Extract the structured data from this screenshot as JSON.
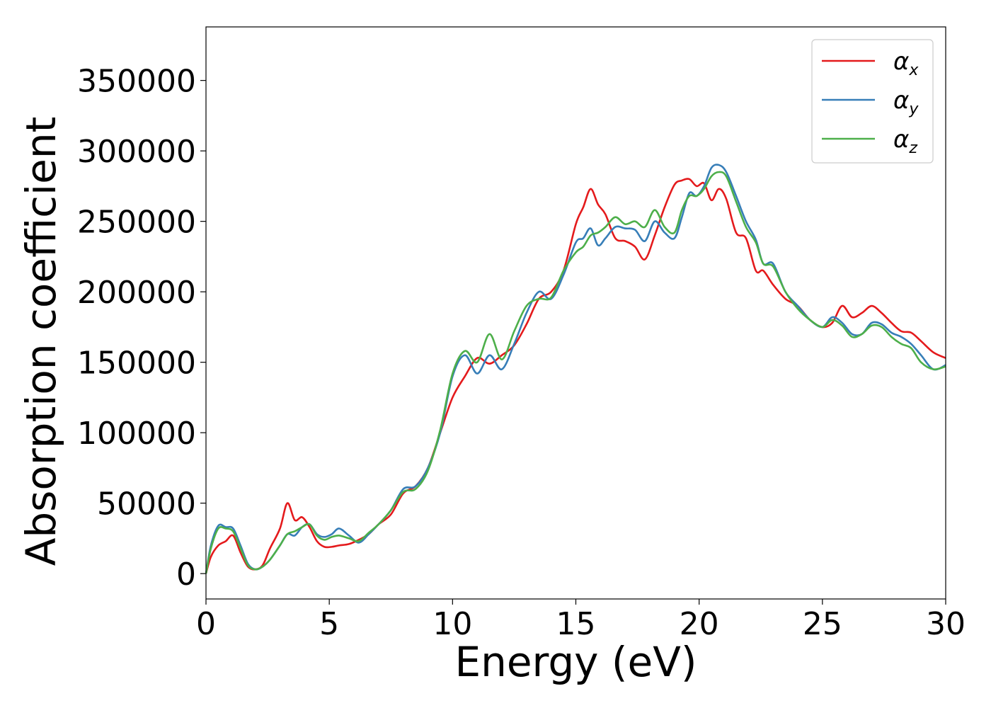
{
  "chart_data": {
    "type": "line",
    "xlabel": "Energy (eV)",
    "ylabel": "Absorption coefficient",
    "xlim": [
      0,
      30
    ],
    "ylim": [
      -18000,
      388000
    ],
    "xticks": [
      0,
      5,
      10,
      15,
      20,
      25,
      30
    ],
    "yticks": [
      0,
      50000,
      100000,
      150000,
      200000,
      250000,
      300000,
      350000
    ],
    "grid": false,
    "legend_position": "top-right",
    "series": [
      {
        "name": "α",
        "subscript": "x",
        "color": "#e41a1c",
        "x": [
          0,
          0.2,
          0.5,
          0.8,
          1.1,
          1.4,
          1.7,
          2.0,
          2.3,
          2.6,
          3.0,
          3.3,
          3.6,
          3.9,
          4.2,
          4.5,
          4.8,
          5.1,
          5.4,
          5.8,
          6.2,
          6.6,
          7.0,
          7.5,
          8.0,
          8.5,
          9.0,
          9.5,
          10.0,
          10.5,
          11.0,
          11.5,
          12.0,
          12.5,
          13.0,
          13.5,
          14.0,
          14.5,
          15.0,
          15.3,
          15.6,
          15.9,
          16.2,
          16.6,
          17.0,
          17.4,
          17.8,
          18.2,
          18.6,
          19.0,
          19.3,
          19.6,
          19.9,
          20.2,
          20.5,
          20.8,
          21.1,
          21.5,
          21.9,
          22.3,
          22.6,
          23.0,
          23.5,
          24.0,
          24.5,
          25.0,
          25.4,
          25.8,
          26.2,
          26.6,
          27.0,
          27.4,
          27.8,
          28.2,
          28.6,
          29.0,
          29.5,
          30.0
        ],
        "values": [
          0,
          12000,
          20000,
          23000,
          27000,
          15000,
          5000,
          3000,
          6000,
          18000,
          32000,
          50000,
          38000,
          40000,
          33000,
          23000,
          19000,
          19000,
          20000,
          21000,
          24000,
          28000,
          35000,
          42000,
          57000,
          62000,
          75000,
          100000,
          125000,
          140000,
          153000,
          149000,
          155000,
          162000,
          177000,
          195000,
          200000,
          215000,
          248000,
          260000,
          273000,
          262000,
          255000,
          238000,
          236000,
          232000,
          223000,
          240000,
          260000,
          276000,
          279000,
          280000,
          275000,
          277000,
          265000,
          273000,
          266000,
          242000,
          238000,
          215000,
          215000,
          205000,
          195000,
          190000,
          180000,
          175000,
          178000,
          190000,
          182000,
          185000,
          190000,
          185000,
          178000,
          172000,
          171000,
          165000,
          157000,
          153000
        ]
      },
      {
        "name": "α",
        "subscript": "y",
        "color": "#377eb8",
        "x": [
          0,
          0.2,
          0.5,
          0.8,
          1.1,
          1.4,
          1.7,
          2.0,
          2.3,
          2.6,
          3.0,
          3.3,
          3.6,
          3.9,
          4.2,
          4.5,
          4.8,
          5.1,
          5.4,
          5.8,
          6.2,
          6.6,
          7.0,
          7.5,
          8.0,
          8.5,
          9.0,
          9.5,
          10.0,
          10.5,
          11.0,
          11.5,
          12.0,
          12.5,
          13.0,
          13.5,
          14.0,
          14.5,
          15.0,
          15.3,
          15.6,
          15.9,
          16.2,
          16.6,
          17.0,
          17.4,
          17.8,
          18.2,
          18.6,
          19.0,
          19.3,
          19.6,
          19.9,
          20.2,
          20.5,
          20.8,
          21.1,
          21.5,
          21.9,
          22.3,
          22.6,
          23.0,
          23.5,
          24.0,
          24.5,
          25.0,
          25.4,
          25.8,
          26.2,
          26.6,
          27.0,
          27.4,
          27.8,
          28.2,
          28.6,
          29.0,
          29.5,
          30.0
        ],
        "values": [
          0,
          20000,
          34000,
          33000,
          32000,
          20000,
          7000,
          3000,
          5000,
          10000,
          20000,
          28000,
          27000,
          33000,
          35000,
          28000,
          26000,
          28000,
          32000,
          27000,
          22000,
          28000,
          35000,
          45000,
          60000,
          62000,
          75000,
          100000,
          140000,
          155000,
          142000,
          155000,
          145000,
          163000,
          185000,
          200000,
          195000,
          212000,
          235000,
          238000,
          245000,
          233000,
          238000,
          246000,
          245000,
          244000,
          236000,
          250000,
          242000,
          238000,
          253000,
          270000,
          268000,
          275000,
          288000,
          290000,
          285000,
          268000,
          250000,
          237000,
          220000,
          220000,
          200000,
          190000,
          180000,
          175000,
          182000,
          178000,
          170000,
          170000,
          178000,
          177000,
          171000,
          168000,
          163000,
          155000,
          145000,
          148000
        ]
      },
      {
        "name": "α",
        "subscript": "z",
        "color": "#4daf4a",
        "x": [
          0,
          0.2,
          0.5,
          0.8,
          1.1,
          1.4,
          1.7,
          2.0,
          2.3,
          2.6,
          3.0,
          3.3,
          3.6,
          3.9,
          4.2,
          4.5,
          4.8,
          5.1,
          5.4,
          5.8,
          6.2,
          6.6,
          7.0,
          7.5,
          8.0,
          8.5,
          9.0,
          9.5,
          10.0,
          10.5,
          11.0,
          11.5,
          12.0,
          12.5,
          13.0,
          13.5,
          14.0,
          14.5,
          15.0,
          15.3,
          15.6,
          15.9,
          16.2,
          16.6,
          17.0,
          17.4,
          17.8,
          18.2,
          18.6,
          19.0,
          19.3,
          19.6,
          19.9,
          20.2,
          20.5,
          20.8,
          21.1,
          21.5,
          21.9,
          22.3,
          22.6,
          23.0,
          23.5,
          24.0,
          24.5,
          25.0,
          25.4,
          25.8,
          26.2,
          26.6,
          27.0,
          27.4,
          27.8,
          28.2,
          28.6,
          29.0,
          29.5,
          30.0
        ],
        "values": [
          0,
          18000,
          32000,
          32000,
          30000,
          18000,
          6000,
          3000,
          5000,
          10000,
          20000,
          28000,
          30000,
          33000,
          35000,
          27000,
          24000,
          26000,
          27000,
          25000,
          23000,
          29000,
          35000,
          45000,
          58000,
          60000,
          73000,
          102000,
          142000,
          158000,
          150000,
          170000,
          152000,
          172000,
          190000,
          195000,
          196000,
          215000,
          228000,
          232000,
          240000,
          242000,
          246000,
          253000,
          248000,
          250000,
          246000,
          258000,
          246000,
          242000,
          258000,
          268000,
          268000,
          273000,
          282000,
          285000,
          282000,
          264000,
          246000,
          235000,
          220000,
          218000,
          200000,
          188000,
          180000,
          175000,
          180000,
          176000,
          168000,
          170000,
          176000,
          175000,
          168000,
          163000,
          160000,
          150000,
          145000,
          147000
        ]
      }
    ]
  }
}
